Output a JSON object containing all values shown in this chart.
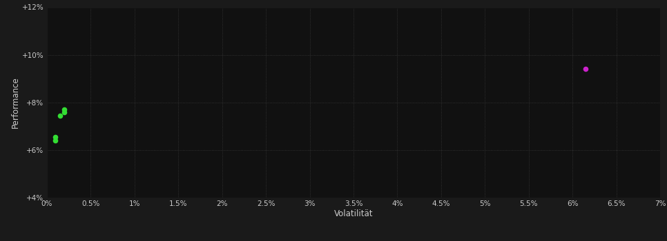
{
  "background_color": "#1a1a1a",
  "plot_bg_color": "#111111",
  "grid_color": "#3a3a3a",
  "text_color": "#cccccc",
  "xlabel": "Volatilität",
  "ylabel": "Performance",
  "xlim": [
    0,
    0.07
  ],
  "ylim": [
    0.04,
    0.12
  ],
  "xticks": [
    0.0,
    0.005,
    0.01,
    0.015,
    0.02,
    0.025,
    0.03,
    0.035,
    0.04,
    0.045,
    0.05,
    0.055,
    0.06,
    0.065,
    0.07
  ],
  "xtick_labels": [
    "0%",
    "0.5%",
    "1%",
    "1.5%",
    "2%",
    "2.5%",
    "3%",
    "3.5%",
    "4%",
    "4.5%",
    "5%",
    "5.5%",
    "6%",
    "6.5%",
    "7%"
  ],
  "yticks": [
    0.04,
    0.06,
    0.08,
    0.1,
    0.12
  ],
  "ytick_labels": [
    "+4%",
    "+6%",
    "+8%",
    "+10%",
    "+12%"
  ],
  "green_points": [
    [
      0.002,
      0.077
    ],
    [
      0.002,
      0.076
    ],
    [
      0.0015,
      0.0745
    ],
    [
      0.001,
      0.0655
    ],
    [
      0.001,
      0.064
    ]
  ],
  "magenta_point": [
    0.0615,
    0.094
  ],
  "green_color": "#33dd33",
  "magenta_color": "#cc22cc",
  "marker_size": 5.5,
  "figsize": [
    9.66,
    3.5
  ],
  "dpi": 100
}
